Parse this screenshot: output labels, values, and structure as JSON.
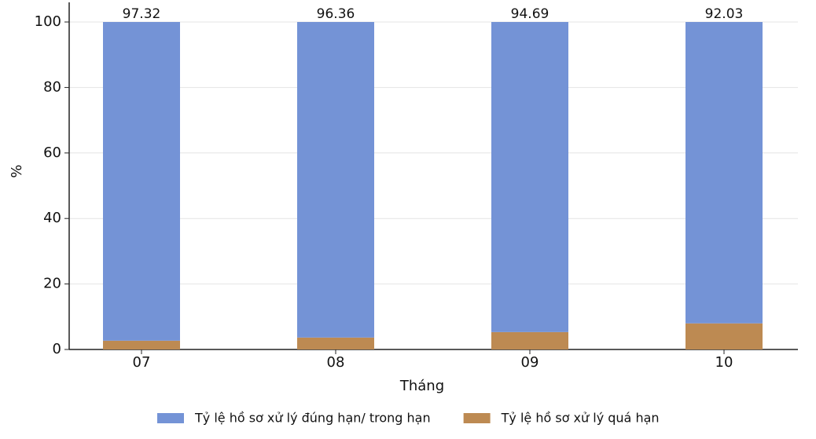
{
  "chart_data": {
    "type": "stacked_bar",
    "x_label": "Tháng",
    "y_label": "%",
    "categories": [
      "07",
      "08",
      "09",
      "10"
    ],
    "series": [
      {
        "name": "Tỷ lệ hồ sơ xử lý quá hạn",
        "color": "#bd8a52",
        "values": [
          2.68,
          3.64,
          5.31,
          7.97
        ]
      },
      {
        "name": "Tỷ lệ hồ sơ xử lý đúng hạn/ trong hạn",
        "color": "#7493d6",
        "values": [
          97.32,
          96.36,
          94.69,
          92.03
        ]
      }
    ],
    "legend_order": [
      1,
      0
    ],
    "ylim": [
      0,
      106
    ],
    "yticks": [
      0,
      20,
      40,
      60,
      80,
      100
    ],
    "grid": true,
    "legend": "bottom"
  }
}
